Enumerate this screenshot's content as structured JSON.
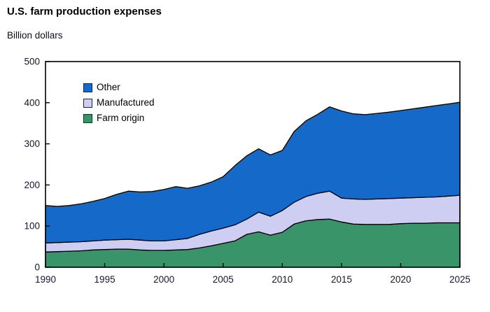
{
  "page": {
    "title": "U.S. farm production expenses",
    "unit_label": "Billion dollars"
  },
  "colors": {
    "farm_origin_green": "#3a9469",
    "manufactured_lavender": "#cecdf2",
    "other_blue": "#1569c8",
    "area_outline": "#000000",
    "axis_line": "#000000",
    "legend_swatch_border": "#1c1c66"
  },
  "chart_data": {
    "type": "area",
    "stacked": true,
    "title": "U.S. farm production expenses",
    "ylabel": "Billion dollars",
    "xlabel": "",
    "xlim": [
      1990,
      2025
    ],
    "ylim": [
      0,
      500
    ],
    "x_ticks": [
      1990,
      1995,
      2000,
      2005,
      2010,
      2015,
      2020,
      2025
    ],
    "y_ticks": [
      0,
      100,
      200,
      300,
      400,
      500
    ],
    "grid": false,
    "legend_position": "top-left-inside",
    "legend_order_top_to_bottom": [
      "Other",
      "Manufactured",
      "Farm origin"
    ],
    "x": [
      1990,
      1991,
      1992,
      1993,
      1994,
      1995,
      1996,
      1997,
      1998,
      1999,
      2000,
      2001,
      2002,
      2003,
      2004,
      2005,
      2006,
      2007,
      2008,
      2009,
      2010,
      2011,
      2012,
      2013,
      2014,
      2015,
      2016,
      2017,
      2018,
      2019,
      2020,
      2021,
      2022,
      2023,
      2024,
      2025
    ],
    "series": [
      {
        "id": "farm-origin",
        "name": "Farm origin",
        "color": "#3a9469",
        "values": [
          37,
          38,
          39,
          40,
          42,
          43,
          44,
          44,
          42,
          41,
          41,
          42,
          43,
          47,
          52,
          58,
          64,
          80,
          86,
          78,
          85,
          105,
          113,
          116,
          117,
          110,
          105,
          104,
          104,
          104,
          106,
          107,
          107,
          108,
          108,
          108
        ]
      },
      {
        "id": "manufactured",
        "name": "Manufactured",
        "color": "#cecdf2",
        "values": [
          22,
          22,
          22,
          22,
          22,
          23,
          23,
          24,
          24,
          23,
          23,
          25,
          27,
          33,
          36,
          37,
          39,
          37,
          48,
          46,
          53,
          53,
          59,
          64,
          68,
          58,
          61,
          61,
          62,
          63,
          62,
          62,
          63,
          63,
          65,
          67
        ]
      },
      {
        "id": "other",
        "name": "Other",
        "color": "#1569c8",
        "values": [
          91,
          88,
          89,
          92,
          96,
          101,
          110,
          117,
          117,
          120,
          125,
          129,
          122,
          118,
          119,
          125,
          144,
          154,
          154,
          149,
          146,
          172,
          184,
          192,
          205,
          212,
          207,
          206,
          208,
          210,
          213,
          216,
          219,
          222,
          224,
          226
        ]
      }
    ]
  }
}
